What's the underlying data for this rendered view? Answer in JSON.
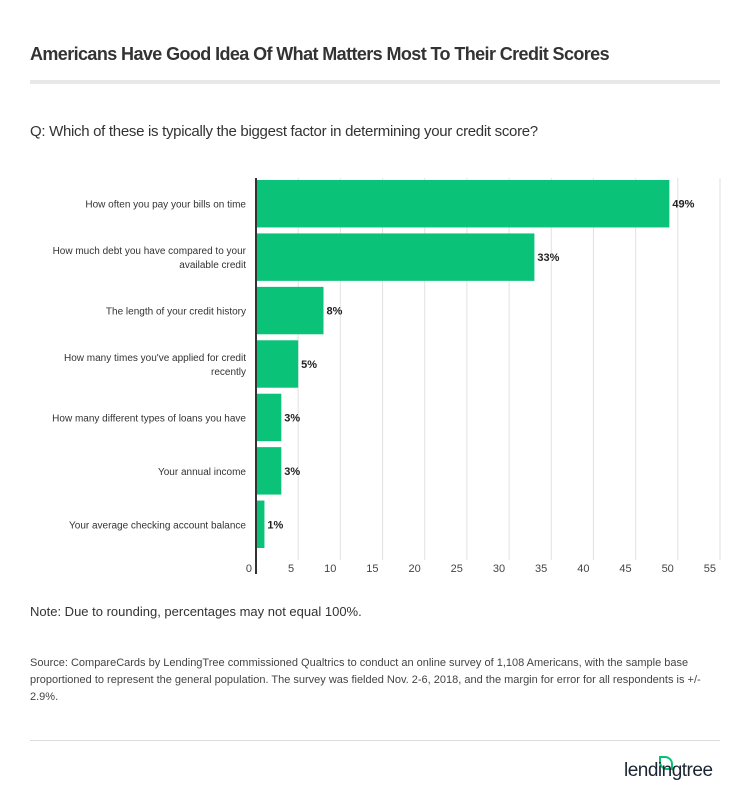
{
  "title": "Americans Have Good Idea Of What Matters Most To Their Credit Scores",
  "question": "Q: Which of these is typically the biggest factor in determining your credit score?",
  "note": "Note: Due to rounding, percentages may not equal 100%.",
  "source": "Source: CompareCards by LendingTree commissioned Qualtrics to conduct an online survey of 1,108 Americans, with the sample base proportioned to represent the general population. The survey was fielded Nov. 2-6, 2018, and the margin for error for all respondents is +/- 2.9%.",
  "logo": "lendingtree",
  "chart_data": {
    "type": "bar",
    "orientation": "horizontal",
    "categories": [
      [
        "How often you pay your bills on time"
      ],
      [
        "How much debt you have compared to your",
        "available credit"
      ],
      [
        "The length of your credit history"
      ],
      [
        "How many times you've applied for credit",
        "recently"
      ],
      [
        "How many different types of loans you have"
      ],
      [
        "Your annual income"
      ],
      [
        "Your average checking account balance"
      ]
    ],
    "values": [
      49,
      33,
      8,
      5,
      3,
      3,
      1
    ],
    "data_labels": [
      "49%",
      "33%",
      "8%",
      "5%",
      "3%",
      "3%",
      "1%"
    ],
    "xlim": [
      0,
      55
    ],
    "xticks": [
      "0",
      "5",
      "10",
      "15",
      "20",
      "25",
      "30",
      "35",
      "40",
      "45",
      "50",
      "55"
    ],
    "grid": true,
    "bar_color": "#0bc279"
  }
}
